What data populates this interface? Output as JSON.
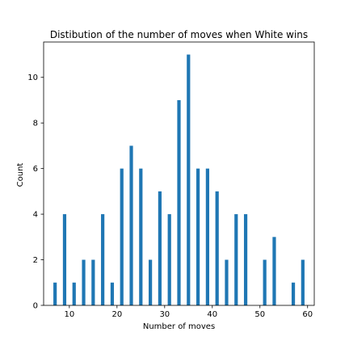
{
  "chart_data": {
    "type": "bar",
    "title": "Distibution of the number of moves when White wins",
    "xlabel": "Number of moves",
    "ylabel": "Count",
    "xlim": [
      4.6,
      61.4
    ],
    "ylim": [
      0,
      11.55
    ],
    "x_ticks": [
      10,
      20,
      30,
      40,
      50,
      60
    ],
    "y_ticks": [
      0,
      2,
      4,
      6,
      8,
      10
    ],
    "grid": false,
    "bar_color": "#1f77b4",
    "bins": [
      {
        "x": 7,
        "count": 1
      },
      {
        "x": 9,
        "count": 4
      },
      {
        "x": 11,
        "count": 1
      },
      {
        "x": 13,
        "count": 2
      },
      {
        "x": 15,
        "count": 2
      },
      {
        "x": 17,
        "count": 4
      },
      {
        "x": 19,
        "count": 1
      },
      {
        "x": 21,
        "count": 6
      },
      {
        "x": 23,
        "count": 7
      },
      {
        "x": 25,
        "count": 6
      },
      {
        "x": 27,
        "count": 2
      },
      {
        "x": 29,
        "count": 5
      },
      {
        "x": 31,
        "count": 4
      },
      {
        "x": 33,
        "count": 9
      },
      {
        "x": 35,
        "count": 11
      },
      {
        "x": 37,
        "count": 6
      },
      {
        "x": 39,
        "count": 6
      },
      {
        "x": 41,
        "count": 5
      },
      {
        "x": 43,
        "count": 2
      },
      {
        "x": 45,
        "count": 4
      },
      {
        "x": 47,
        "count": 4
      },
      {
        "x": 51,
        "count": 2
      },
      {
        "x": 53,
        "count": 3
      },
      {
        "x": 57,
        "count": 1
      },
      {
        "x": 59,
        "count": 2
      }
    ]
  }
}
